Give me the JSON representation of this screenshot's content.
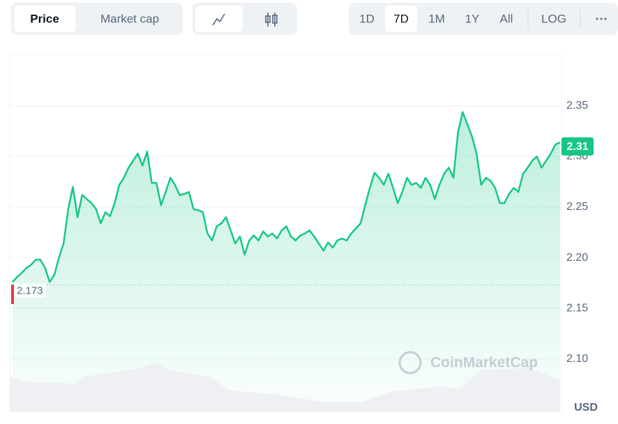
{
  "toolbar": {
    "views": [
      "Price",
      "Market cap"
    ],
    "ranges": [
      "1D",
      "7D",
      "1M",
      "1Y",
      "All"
    ],
    "log": "LOG"
  },
  "chart_data": {
    "type": "line",
    "color": "#16c784",
    "values": [
      2.176,
      2.181,
      2.185,
      2.19,
      2.193,
      2.198,
      2.198,
      2.19,
      2.176,
      2.183,
      2.2,
      2.214,
      2.248,
      2.27,
      2.24,
      2.262,
      2.258,
      2.254,
      2.248,
      2.234,
      2.245,
      2.241,
      2.254,
      2.272,
      2.279,
      2.289,
      2.296,
      2.303,
      2.291,
      2.305,
      2.274,
      2.274,
      2.252,
      2.265,
      2.279,
      2.272,
      2.262,
      2.263,
      2.265,
      2.248,
      2.247,
      2.245,
      2.224,
      2.217,
      2.231,
      2.234,
      2.24,
      2.227,
      2.214,
      2.221,
      2.203,
      2.217,
      2.222,
      2.217,
      2.226,
      2.221,
      2.224,
      2.219,
      2.227,
      2.231,
      2.221,
      2.217,
      2.222,
      2.224,
      2.227,
      2.221,
      2.214,
      2.207,
      2.215,
      2.21,
      2.217,
      2.219,
      2.217,
      2.224,
      2.229,
      2.234,
      2.252,
      2.269,
      2.284,
      2.279,
      2.272,
      2.283,
      2.269,
      2.254,
      2.265,
      2.279,
      2.272,
      2.274,
      2.269,
      2.279,
      2.272,
      2.258,
      2.272,
      2.283,
      2.289,
      2.279,
      2.324,
      2.344,
      2.332,
      2.32,
      2.303,
      2.272,
      2.279,
      2.276,
      2.269,
      2.254,
      2.254,
      2.263,
      2.269,
      2.265,
      2.283,
      2.289,
      2.296,
      2.3,
      2.289,
      2.296,
      2.303,
      2.312,
      2.314
    ],
    "ylim": [
      2.048,
      2.401
    ],
    "yticks": [
      {
        "value": 2.1,
        "label": "2.10"
      },
      2.15,
      {
        "value": 2.2,
        "label": "2.20"
      },
      2.25,
      {
        "value": 2.3,
        "label": "2.30"
      },
      2.35
    ],
    "grid": true,
    "current_price": 2.31,
    "reference": 2.173,
    "watermark": "CoinMarketCap",
    "currency": "USD"
  }
}
